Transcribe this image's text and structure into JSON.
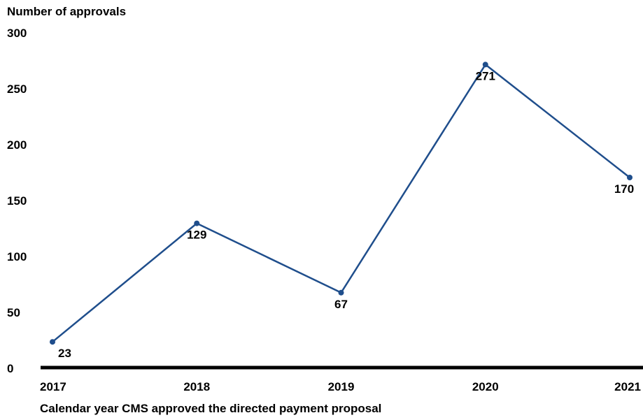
{
  "chart_data": {
    "type": "line",
    "title": "",
    "ylabel": "Number of approvals",
    "xlabel": "Calendar year CMS approved the directed payment proposal",
    "categories": [
      "2017",
      "2018",
      "2019",
      "2020",
      "2021"
    ],
    "series": [
      {
        "values": [
          23,
          129,
          67,
          271,
          170
        ],
        "color": "#1f4e8c"
      }
    ],
    "data_labels": [
      "23",
      "129",
      "67",
      "271",
      "170"
    ],
    "y_ticks": [
      "0",
      "50",
      "100",
      "150",
      "200",
      "250",
      "300"
    ],
    "ylim": [
      0,
      300
    ],
    "grid": false,
    "legend": "none",
    "axis_color": "#000000"
  }
}
